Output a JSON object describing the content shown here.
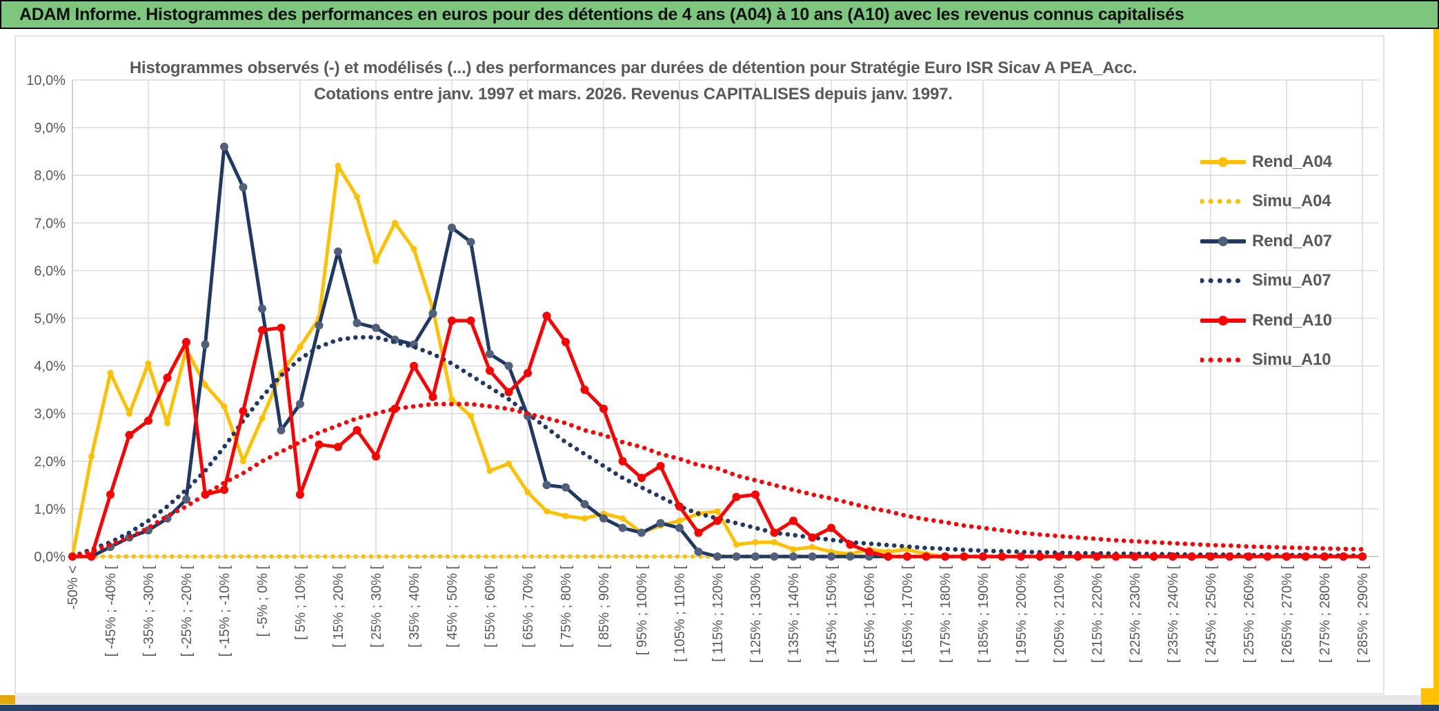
{
  "header": {
    "title": "ADAM Informe. Histogrammes des performances en euros pour des détentions de 4 ans (A04) à 10 ans (A10) avec les revenus connus capitalisés"
  },
  "colors": {
    "header_green": "#7dc67d",
    "frame_gold": "#ffc000",
    "corner_gold": "#e5a50d",
    "bottom_bar_navy": "#26426e",
    "grid": "#d9d9d9",
    "axis": "#c2c2c2",
    "text_gray": "#595959",
    "marker_navy_fill": "#50607a"
  },
  "chart_data": {
    "type": "line",
    "title": "Histogrammes observés (-) et modélisés (...) des performances par durées de détention pour Stratégie Euro ISR Sicav A PEA_Acc.",
    "subtitle": "Cotations entre janv. 1997 et mars. 2026. Revenus CAPITALISES depuis janv. 1997.",
    "xlabel": "",
    "ylabel": "",
    "ylim": [
      0,
      10
    ],
    "y_tick_labels": [
      "10,0%",
      "9,0%",
      "8,0%",
      "7,0%",
      "6,0%",
      "5,0%",
      "4,0%",
      "3,0%",
      "2,0%",
      "1,0%",
      "0,0%"
    ],
    "x_tick_labels": [
      "-50% <",
      "[ -45% ; -40% [",
      "[ -35% ; -30% [",
      "[ -25% ; -20% [",
      "[ -15% ; -10% [",
      "[ -5% ; 0% [",
      "[ 5% ; 10% [",
      "[ 15% ; 20% [",
      "[ 25% ; 30% [",
      "[ 35% ; 40% [",
      "[ 45% ; 50% [",
      "[ 55% ; 60% [",
      "[ 65% ; 70% [",
      "[ 75% ; 80% [",
      "[ 85% ; 90% [",
      "[ 95% ; 100% [",
      "[ 105% ; 110% [",
      "[ 115% ; 120% [",
      "[ 125% ; 130% [",
      "[ 135% ; 140% [",
      "[ 145% ; 150% [",
      "[ 155% ; 160% [",
      "[ 165% ; 170% [",
      "[ 175% ; 180% [",
      "[ 185% ; 190% [",
      "[ 195% ; 200% [",
      "[ 205% ; 210% [",
      "[ 215% ; 220% [",
      "[ 225% ; 230% [",
      "[ 235% ; 240% [",
      "[ 245% ; 250% [",
      "[ 255% ; 260% [",
      "[ 265% ; 270% [",
      "[ 275% ; 280% [",
      "[ 285% ; 290% ["
    ],
    "bins_note": "69 bins of 5% width: first = below -50%, then [-50;-45[ ... [285;290[; a tick label is shown for every second bin",
    "legend_position": "right",
    "grid": true,
    "series": [
      {
        "name": "Rend_A04",
        "color": "#FFC000",
        "dotted": false,
        "marker": true,
        "marker_color": "#FFC000",
        "marker_r": 4.5,
        "values": [
          0,
          2.1,
          3.85,
          3.0,
          4.05,
          2.8,
          4.35,
          3.6,
          3.15,
          2.0,
          2.9,
          3.85,
          4.4,
          5.0,
          8.2,
          7.55,
          6.2,
          7.0,
          6.45,
          5.2,
          3.3,
          2.95,
          1.8,
          1.95,
          1.35,
          0.95,
          0.85,
          0.8,
          0.9,
          0.8,
          0.5,
          0.65,
          0.75,
          0.9,
          0.95,
          0.25,
          0.3,
          0.3,
          0.15,
          0.2,
          0.1,
          0.05,
          0.15,
          0.1,
          0.15,
          0.05,
          0,
          0,
          0,
          0,
          0,
          0,
          0,
          0,
          0,
          0,
          0,
          0,
          0,
          0,
          0,
          0,
          0,
          0,
          0,
          0,
          0,
          0,
          0
        ]
      },
      {
        "name": "Simu_A04",
        "color": "#FFC000",
        "dotted": true,
        "marker": false,
        "values": [
          0,
          0,
          0,
          0,
          0,
          0,
          0,
          0,
          0,
          0,
          0,
          0,
          0,
          0,
          0,
          0,
          0,
          0,
          0,
          0,
          0,
          0,
          0,
          0,
          0,
          0,
          0,
          0,
          0,
          0,
          0,
          0,
          0,
          0,
          0,
          0,
          0,
          0,
          0,
          0,
          0,
          0,
          0,
          0,
          0,
          0,
          0,
          0,
          0,
          0,
          0,
          0,
          0,
          0,
          0,
          0,
          0,
          0,
          0,
          0,
          0,
          0,
          0,
          0,
          0,
          0,
          0,
          0,
          0
        ]
      },
      {
        "name": "Rend_A07",
        "color": "#1F3864",
        "dotted": false,
        "marker": true,
        "marker_color": "#50607a",
        "marker_r": 6,
        "values": [
          0,
          0,
          0.2,
          0.4,
          0.55,
          0.8,
          1.2,
          4.45,
          8.6,
          7.75,
          5.2,
          2.65,
          3.2,
          4.85,
          6.4,
          4.9,
          4.8,
          4.55,
          4.45,
          5.1,
          6.9,
          6.6,
          4.25,
          4.0,
          2.95,
          1.5,
          1.45,
          1.1,
          0.8,
          0.6,
          0.5,
          0.7,
          0.6,
          0.1,
          0,
          0,
          0,
          0,
          0,
          0,
          0,
          0,
          0,
          0,
          0,
          0,
          0,
          0,
          0,
          0,
          0,
          0,
          0,
          0,
          0,
          0,
          0,
          0,
          0,
          0,
          0,
          0,
          0,
          0,
          0,
          0,
          0,
          0,
          0
        ]
      },
      {
        "name": "Simu_A07",
        "color": "#1F3864",
        "dotted": true,
        "marker": false,
        "values": [
          0,
          0.15,
          0.3,
          0.5,
          0.75,
          1.05,
          1.4,
          1.8,
          2.3,
          2.85,
          3.35,
          3.8,
          4.15,
          4.4,
          4.55,
          4.6,
          4.6,
          4.5,
          4.4,
          4.25,
          4.05,
          3.8,
          3.55,
          3.3,
          3.0,
          2.7,
          2.4,
          2.15,
          1.9,
          1.65,
          1.45,
          1.25,
          1.05,
          0.9,
          0.8,
          0.7,
          0.6,
          0.5,
          0.45,
          0.4,
          0.35,
          0.3,
          0.27,
          0.24,
          0.21,
          0.18,
          0.16,
          0.14,
          0.12,
          0.11,
          0.1,
          0.09,
          0.08,
          0.07,
          0.07,
          0.06,
          0.06,
          0.05,
          0.05,
          0.04,
          0.04,
          0.04,
          0.03,
          0.03,
          0.03,
          0.03,
          0.02,
          0.02,
          0.02
        ]
      },
      {
        "name": "Rend_A10",
        "color": "#FF0000",
        "dotted": false,
        "marker": true,
        "marker_color": "#FF0000",
        "marker_r": 6,
        "values": [
          0,
          0,
          1.3,
          2.55,
          2.85,
          3.75,
          4.5,
          1.3,
          1.4,
          3.05,
          4.75,
          4.8,
          1.3,
          2.35,
          2.3,
          2.65,
          2.1,
          3.1,
          4.0,
          3.35,
          4.95,
          4.95,
          3.9,
          3.45,
          3.85,
          5.05,
          4.5,
          3.5,
          3.1,
          2.0,
          1.65,
          1.9,
          1.05,
          0.5,
          0.75,
          1.25,
          1.3,
          0.5,
          0.75,
          0.4,
          0.6,
          0.25,
          0.1,
          0,
          0,
          0,
          0,
          0,
          0,
          0,
          0,
          0,
          0,
          0,
          0,
          0,
          0,
          0,
          0,
          0,
          0,
          0,
          0,
          0,
          0,
          0,
          0,
          0,
          0
        ]
      },
      {
        "name": "Simu_A10",
        "color": "#FF0000",
        "dotted": true,
        "marker": false,
        "values": [
          0,
          0.1,
          0.25,
          0.4,
          0.6,
          0.85,
          1.05,
          1.3,
          1.55,
          1.75,
          2.0,
          2.2,
          2.4,
          2.6,
          2.75,
          2.9,
          3.0,
          3.1,
          3.15,
          3.2,
          3.2,
          3.2,
          3.15,
          3.1,
          3.0,
          2.9,
          2.8,
          2.65,
          2.55,
          2.4,
          2.3,
          2.15,
          2.05,
          1.92,
          1.85,
          1.7,
          1.6,
          1.5,
          1.4,
          1.3,
          1.22,
          1.12,
          1.02,
          0.95,
          0.85,
          0.78,
          0.72,
          0.65,
          0.6,
          0.55,
          0.5,
          0.46,
          0.43,
          0.4,
          0.37,
          0.34,
          0.32,
          0.3,
          0.28,
          0.26,
          0.24,
          0.23,
          0.21,
          0.2,
          0.19,
          0.18,
          0.17,
          0.16,
          0.15
        ]
      }
    ]
  }
}
